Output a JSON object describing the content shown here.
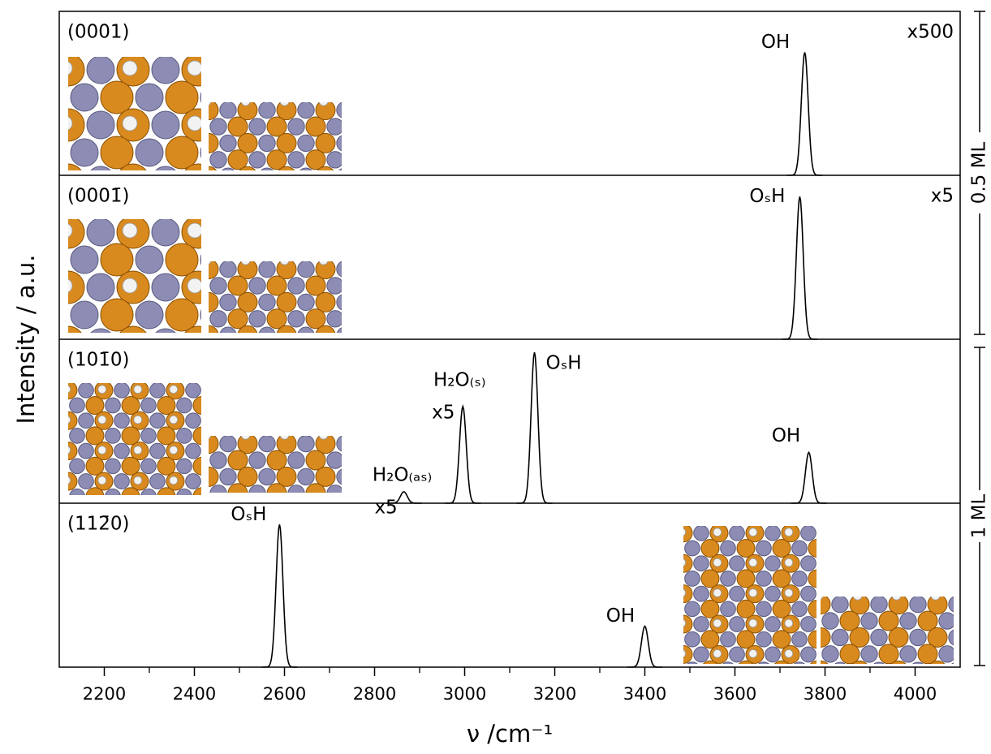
{
  "chart_data": [
    {
      "type": "spectrum",
      "panel_label": "(0001)",
      "annotation": "x500",
      "xlim": [
        2100,
        4100
      ],
      "ylim": [
        0,
        1
      ],
      "x": [
        3755
      ],
      "values": [
        0.75
      ],
      "peak_labels": [
        "OH"
      ],
      "peak_notes": [
        null
      ],
      "color": "#000000"
    },
    {
      "type": "spectrum",
      "panel_label": "(0001̄)",
      "annotation": "x5",
      "xlim": [
        2100,
        4100
      ],
      "ylim": [
        0,
        1
      ],
      "x": [
        3744
      ],
      "values": [
        0.87
      ],
      "peak_labels": [
        "OₛH"
      ],
      "peak_notes": [
        null
      ],
      "color": "#000000"
    },
    {
      "type": "spectrum",
      "panel_label": "(101̄0)",
      "xlim": [
        2100,
        4100
      ],
      "ylim": [
        0,
        1
      ],
      "x": [
        2865,
        2996,
        3155,
        3764
      ],
      "values": [
        0.07,
        0.59,
        0.92,
        0.31
      ],
      "peak_labels": [
        "H₂O₍ₐₛ₎",
        "H₂O₍ₛ₎",
        "OₛH",
        "OH"
      ],
      "peak_notes": [
        "x5",
        "x5",
        null,
        null
      ],
      "color": "#000000"
    },
    {
      "type": "spectrum",
      "panel_label": "(112̄0)",
      "xlim": [
        2100,
        4100
      ],
      "ylim": [
        0,
        1
      ],
      "x": [
        2589,
        3400
      ],
      "values": [
        0.87,
        0.25
      ],
      "peak_labels": [
        "OₛH",
        "OH"
      ],
      "peak_notes": [
        null,
        null
      ],
      "color": "#000000",
      "xlabel": "ν /cm⁻¹",
      "ylabel": "Intensity / a.u.",
      "xticks": [
        2200,
        2400,
        2600,
        2800,
        3000,
        3200,
        3400,
        3600,
        3800,
        4000
      ],
      "xminorticks": [
        2300,
        2500,
        2700,
        2900,
        3100,
        3300,
        3500,
        3700,
        3900
      ]
    }
  ],
  "brackets": [
    "0.5 ML",
    "1 ML"
  ]
}
